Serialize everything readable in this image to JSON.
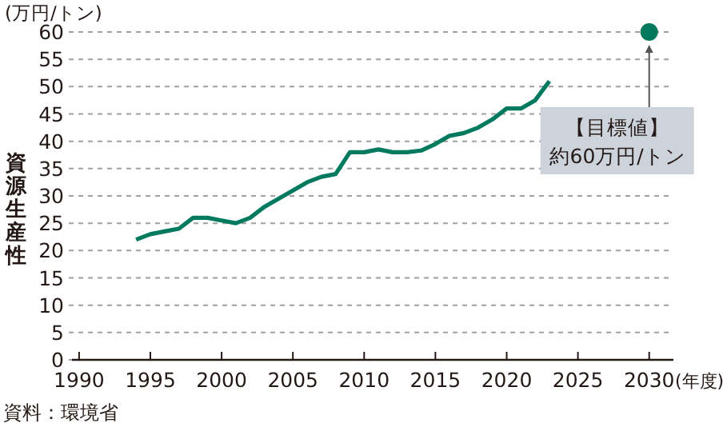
{
  "chart_data": {
    "type": "line",
    "ylabel": "資源生産性",
    "xlabel": "(年度)",
    "x": [
      1994,
      1995,
      1996,
      1997,
      1998,
      1999,
      2000,
      2001,
      2002,
      2003,
      2004,
      2005,
      2006,
      2007,
      2008,
      2009,
      2010,
      2011,
      2012,
      2013,
      2014,
      2015,
      2016,
      2017,
      2018,
      2019,
      2020,
      2021,
      2022,
      2023
    ],
    "series": [
      {
        "color": "#007a5e",
        "marker": "none",
        "line_style": "solid",
        "values": [
          22,
          23,
          23.5,
          24,
          26,
          26,
          25.5,
          25,
          26,
          28,
          29.5,
          31,
          32.5,
          33.5,
          34,
          38,
          38,
          38.5,
          38,
          38,
          38.3,
          39.5,
          41,
          41.5,
          42.5,
          44,
          46,
          46,
          47.5,
          51
        ]
      },
      {
        "type": "scatter",
        "color": "#007a5e",
        "marker": "circle",
        "x": [
          2030
        ],
        "values": [
          60
        ]
      }
    ],
    "xlim": [
      1989.5,
      2031.7
    ],
    "ylim": [
      0,
      60
    ],
    "xticks": [
      1990,
      1995,
      2000,
      2005,
      2010,
      2015,
      2020,
      2025,
      2030
    ],
    "yticks": [
      0,
      5,
      10,
      15,
      20,
      25,
      30,
      35,
      40,
      45,
      50,
      55,
      60
    ],
    "grid": "y",
    "annotations": [
      "(万円/トン)",
      "【目標値】約60万円/トン",
      "資料：環境省"
    ]
  }
}
